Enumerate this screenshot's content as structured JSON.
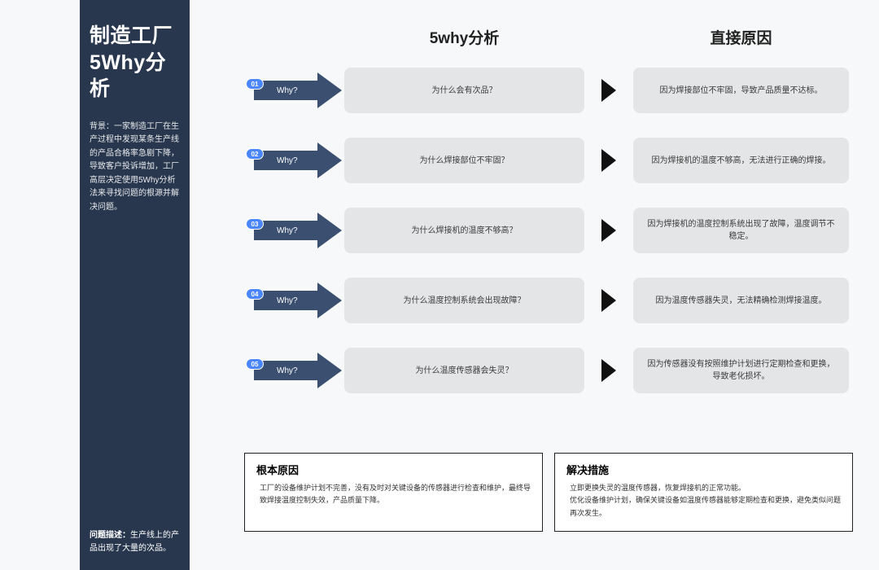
{
  "colors": {
    "sidebar_bg": "#28374e",
    "arrow_fill": "#3b5071",
    "badge_fill": "#4a86ff",
    "box_bg": "#e4e5e7",
    "page_bg": "#f7f8f9"
  },
  "sidebar": {
    "title_line1": "制造工厂",
    "title_line2": "5Why分析",
    "background_text": "背景：一家制造工厂在生产过程中发现某条生产线的产品合格率急剧下降，导致客户投诉增加，工厂高层决定使用5Why分析法来寻找问题的根源并解决问题。",
    "problem_label": "问题描述：",
    "problem_text": "生产线上的产品出现了大量的次品。"
  },
  "headers": {
    "analysis": "5why分析",
    "cause": "直接原因"
  },
  "why_label": "Why?",
  "rows": [
    {
      "num": "01",
      "q": "为什么会有次品？",
      "a": "因为焊接部位不牢固，导致产品质量不达标。"
    },
    {
      "num": "02",
      "q": "为什么焊接部位不牢固？",
      "a": "因为焊接机的温度不够高，无法进行正确的焊接。"
    },
    {
      "num": "03",
      "q": "为什么焊接机的温度不够高？",
      "a": "因为焊接机的温度控制系统出现了故障，温度调节不稳定。"
    },
    {
      "num": "04",
      "q": "为什么温度控制系统会出现故障？",
      "a": "因为温度传感器失灵，无法精确检测焊接温度。"
    },
    {
      "num": "05",
      "q": "为什么温度传感器会失灵？",
      "a": "因为传感器没有按照维护计划进行定期检查和更换，导致老化损坏。"
    }
  ],
  "root_cause": {
    "title": "根本原因",
    "text": "工厂的设备维护计划不完善，没有及时对关键设备的传感器进行检查和维护，最终导致焊接温度控制失效，产品质量下降。"
  },
  "solution": {
    "title": "解决措施",
    "text": "立即更换失灵的温度传感器，恢复焊接机的正常功能。\n优化设备维护计划，确保关键设备如温度传感器能够定期检查和更换，避免类似问题再次发生。"
  }
}
